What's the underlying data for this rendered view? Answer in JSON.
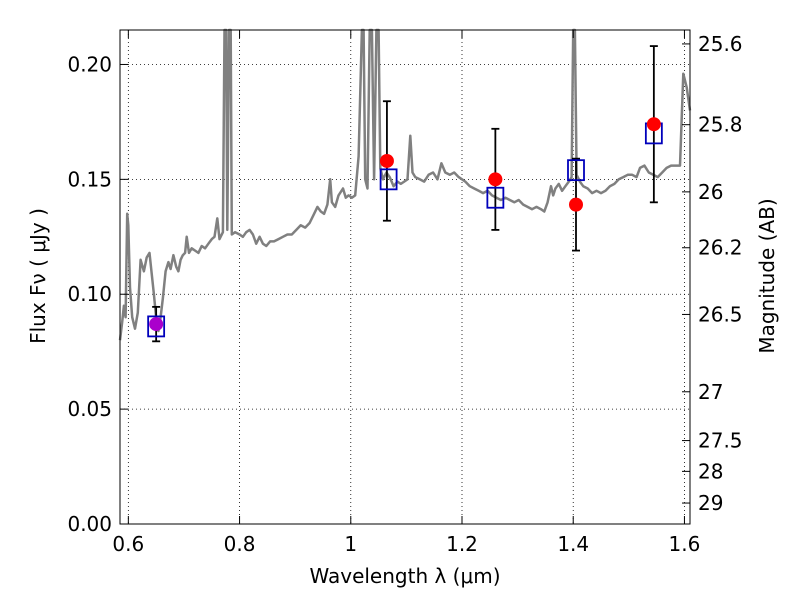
{
  "chart_data": {
    "type": "scatter",
    "title": "",
    "xlabel": "Wavelength  λ (μm)",
    "ylabel": "Flux  Fν  ( μJy )",
    "ylabel_right": "Magnitude (AB)",
    "xlim": [
      0.585,
      1.61
    ],
    "ylim": [
      0.0,
      0.215
    ],
    "grid": true,
    "grid_style": "dotted",
    "x_ticks": [
      {
        "value": 0.6,
        "label": "0.6"
      },
      {
        "value": 0.8,
        "label": "0.8"
      },
      {
        "value": 1.0,
        "label": "1"
      },
      {
        "value": 1.2,
        "label": "1.2"
      },
      {
        "value": 1.4,
        "label": "1.4"
      },
      {
        "value": 1.6,
        "label": "1.6"
      }
    ],
    "y_ticks": [
      {
        "value": 0.0,
        "label": "0.00"
      },
      {
        "value": 0.05,
        "label": "0.05"
      },
      {
        "value": 0.1,
        "label": "0.10"
      },
      {
        "value": 0.15,
        "label": "0.15"
      },
      {
        "value": 0.2,
        "label": "0.20"
      }
    ],
    "right_ticks": [
      {
        "value": 25.6,
        "label": "25.6"
      },
      {
        "value": 25.8,
        "label": "25.8"
      },
      {
        "value": 26.0,
        "label": "26"
      },
      {
        "value": 26.2,
        "label": "26.2"
      },
      {
        "value": 26.5,
        "label": "26.5"
      },
      {
        "value": 27.0,
        "label": "27"
      },
      {
        "value": 27.5,
        "label": "27.5"
      },
      {
        "value": 28.0,
        "label": "28"
      },
      {
        "value": 29.0,
        "label": "29"
      }
    ],
    "observed": {
      "color": "#ff0000",
      "points": [
        {
          "x": 0.65,
          "y": 0.087,
          "err": 0.0075,
          "color": "#aa00cc"
        },
        {
          "x": 1.065,
          "y": 0.158,
          "err": 0.026
        },
        {
          "x": 1.26,
          "y": 0.15,
          "err": 0.022
        },
        {
          "x": 1.405,
          "y": 0.139,
          "err": 0.02
        },
        {
          "x": 1.545,
          "y": 0.174,
          "err": 0.034
        }
      ]
    },
    "model_photometry": {
      "color": "#0000bb",
      "points": [
        {
          "x": 0.65,
          "y": 0.086
        },
        {
          "x": 1.068,
          "y": 0.15
        },
        {
          "x": 1.26,
          "y": 0.142
        },
        {
          "x": 1.405,
          "y": 0.154
        },
        {
          "x": 1.545,
          "y": 0.17
        }
      ]
    },
    "spectrum": {
      "color": "#808080",
      "points": [
        [
          0.585,
          0.08
        ],
        [
          0.589,
          0.088
        ],
        [
          0.592,
          0.095
        ],
        [
          0.595,
          0.09
        ],
        [
          0.598,
          0.135
        ],
        [
          0.6,
          0.13
        ],
        [
          0.603,
          0.103
        ],
        [
          0.607,
          0.09
        ],
        [
          0.612,
          0.085
        ],
        [
          0.617,
          0.092
        ],
        [
          0.622,
          0.115
        ],
        [
          0.628,
          0.11
        ],
        [
          0.633,
          0.116
        ],
        [
          0.638,
          0.118
        ],
        [
          0.642,
          0.109
        ],
        [
          0.646,
          0.1
        ],
        [
          0.65,
          0.09
        ],
        [
          0.654,
          0.084
        ],
        [
          0.658,
          0.09
        ],
        [
          0.662,
          0.098
        ],
        [
          0.667,
          0.11
        ],
        [
          0.672,
          0.114
        ],
        [
          0.676,
          0.111
        ],
        [
          0.681,
          0.117
        ],
        [
          0.686,
          0.112
        ],
        [
          0.69,
          0.11
        ],
        [
          0.694,
          0.115
        ],
        [
          0.698,
          0.117
        ],
        [
          0.702,
          0.118
        ],
        [
          0.705,
          0.125
        ],
        [
          0.709,
          0.118
        ],
        [
          0.714,
          0.12
        ],
        [
          0.72,
          0.119
        ],
        [
          0.726,
          0.118
        ],
        [
          0.732,
          0.121
        ],
        [
          0.738,
          0.12
        ],
        [
          0.744,
          0.122
        ],
        [
          0.75,
          0.124
        ],
        [
          0.755,
          0.125
        ],
        [
          0.76,
          0.133
        ],
        [
          0.764,
          0.124
        ],
        [
          0.77,
          0.127
        ],
        [
          0.773,
          0.215
        ],
        [
          0.776,
          0.215
        ],
        [
          0.778,
          0.128
        ],
        [
          0.781,
          0.215
        ],
        [
          0.784,
          0.215
        ],
        [
          0.786,
          0.126
        ],
        [
          0.792,
          0.127
        ],
        [
          0.8,
          0.126
        ],
        [
          0.806,
          0.125
        ],
        [
          0.812,
          0.127
        ],
        [
          0.818,
          0.128
        ],
        [
          0.824,
          0.126
        ],
        [
          0.83,
          0.122
        ],
        [
          0.836,
          0.125
        ],
        [
          0.842,
          0.122
        ],
        [
          0.848,
          0.121
        ],
        [
          0.855,
          0.123
        ],
        [
          0.862,
          0.123
        ],
        [
          0.87,
          0.124
        ],
        [
          0.878,
          0.125
        ],
        [
          0.886,
          0.126
        ],
        [
          0.894,
          0.126
        ],
        [
          0.902,
          0.128
        ],
        [
          0.91,
          0.13
        ],
        [
          0.918,
          0.129
        ],
        [
          0.926,
          0.131
        ],
        [
          0.934,
          0.135
        ],
        [
          0.94,
          0.138
        ],
        [
          0.946,
          0.136
        ],
        [
          0.952,
          0.135
        ],
        [
          0.958,
          0.139
        ],
        [
          0.963,
          0.15
        ],
        [
          0.966,
          0.14
        ],
        [
          0.972,
          0.138
        ],
        [
          0.978,
          0.143
        ],
        [
          0.986,
          0.146
        ],
        [
          0.991,
          0.142
        ],
        [
          0.996,
          0.143
        ],
        [
          1.002,
          0.142
        ],
        [
          1.008,
          0.143
        ],
        [
          1.014,
          0.16
        ],
        [
          1.02,
          0.215
        ],
        [
          1.023,
          0.215
        ],
        [
          1.026,
          0.15
        ],
        [
          1.03,
          0.146
        ],
        [
          1.034,
          0.215
        ],
        [
          1.038,
          0.215
        ],
        [
          1.042,
          0.15
        ],
        [
          1.046,
          0.215
        ],
        [
          1.05,
          0.215
        ],
        [
          1.053,
          0.155
        ],
        [
          1.058,
          0.15
        ],
        [
          1.064,
          0.153
        ],
        [
          1.07,
          0.151
        ],
        [
          1.077,
          0.147
        ],
        [
          1.084,
          0.149
        ],
        [
          1.09,
          0.148
        ],
        [
          1.096,
          0.149
        ],
        [
          1.102,
          0.15
        ],
        [
          1.107,
          0.169
        ],
        [
          1.111,
          0.153
        ],
        [
          1.116,
          0.151
        ],
        [
          1.124,
          0.15
        ],
        [
          1.132,
          0.149
        ],
        [
          1.14,
          0.152
        ],
        [
          1.148,
          0.153
        ],
        [
          1.156,
          0.15
        ],
        [
          1.163,
          0.157
        ],
        [
          1.17,
          0.153
        ],
        [
          1.178,
          0.152
        ],
        [
          1.186,
          0.153
        ],
        [
          1.194,
          0.151
        ],
        [
          1.2,
          0.15
        ],
        [
          1.206,
          0.149
        ],
        [
          1.214,
          0.147
        ],
        [
          1.222,
          0.146
        ],
        [
          1.23,
          0.145
        ],
        [
          1.238,
          0.144
        ],
        [
          1.246,
          0.145
        ],
        [
          1.254,
          0.143
        ],
        [
          1.262,
          0.142
        ],
        [
          1.27,
          0.141
        ],
        [
          1.278,
          0.142
        ],
        [
          1.286,
          0.141
        ],
        [
          1.294,
          0.14
        ],
        [
          1.302,
          0.141
        ],
        [
          1.31,
          0.139
        ],
        [
          1.318,
          0.138
        ],
        [
          1.326,
          0.137
        ],
        [
          1.334,
          0.138
        ],
        [
          1.342,
          0.137
        ],
        [
          1.348,
          0.136
        ],
        [
          1.354,
          0.14
        ],
        [
          1.36,
          0.147
        ],
        [
          1.364,
          0.143
        ],
        [
          1.368,
          0.146
        ],
        [
          1.374,
          0.148
        ],
        [
          1.38,
          0.145
        ],
        [
          1.386,
          0.147
        ],
        [
          1.392,
          0.149
        ],
        [
          1.397,
          0.151
        ],
        [
          1.4,
          0.215
        ],
        [
          1.403,
          0.215
        ],
        [
          1.406,
          0.152
        ],
        [
          1.412,
          0.149
        ],
        [
          1.418,
          0.147
        ],
        [
          1.426,
          0.146
        ],
        [
          1.434,
          0.144
        ],
        [
          1.442,
          0.145
        ],
        [
          1.45,
          0.144
        ],
        [
          1.458,
          0.145
        ],
        [
          1.466,
          0.147
        ],
        [
          1.474,
          0.148
        ],
        [
          1.482,
          0.15
        ],
        [
          1.49,
          0.151
        ],
        [
          1.498,
          0.152
        ],
        [
          1.506,
          0.152
        ],
        [
          1.514,
          0.151
        ],
        [
          1.52,
          0.155
        ],
        [
          1.528,
          0.156
        ],
        [
          1.536,
          0.153
        ],
        [
          1.544,
          0.152
        ],
        [
          1.552,
          0.151
        ],
        [
          1.56,
          0.153
        ],
        [
          1.568,
          0.155
        ],
        [
          1.576,
          0.156
        ],
        [
          1.584,
          0.156
        ],
        [
          1.592,
          0.156
        ],
        [
          1.598,
          0.196
        ],
        [
          1.604,
          0.19
        ],
        [
          1.61,
          0.18
        ]
      ]
    }
  }
}
